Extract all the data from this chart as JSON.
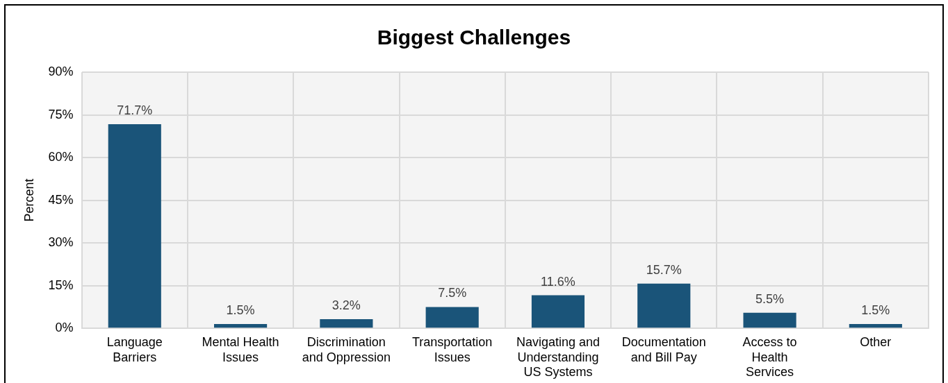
{
  "chart_data": {
    "type": "bar",
    "title": "Biggest Challenges",
    "ylabel": "Percent",
    "categories": [
      "Language Barriers",
      "Mental Health Issues",
      "Discrimination and Oppression",
      "Transportation Issues",
      "Navigating and Understanding US Systems",
      "Documentation and Bill Pay",
      "Access to Health Services",
      "Other"
    ],
    "values": [
      71.7,
      1.5,
      3.2,
      7.5,
      11.6,
      15.7,
      5.5,
      1.5
    ],
    "value_labels": [
      "71.7%",
      "1.5%",
      "3.2%",
      "7.5%",
      "11.6%",
      "15.7%",
      "5.5%",
      "1.5%"
    ],
    "color": "#1a5479",
    "ylim": [
      0,
      90
    ],
    "yticks": [
      {
        "value": 0,
        "label": "0%"
      },
      {
        "value": 15,
        "label": "15%"
      },
      {
        "value": 30,
        "label": "30%"
      },
      {
        "value": 45,
        "label": "45%"
      },
      {
        "value": 60,
        "label": "60%"
      },
      {
        "value": 75,
        "label": "75%"
      },
      {
        "value": 90,
        "label": "90%"
      }
    ],
    "grid": true,
    "legend": false
  }
}
